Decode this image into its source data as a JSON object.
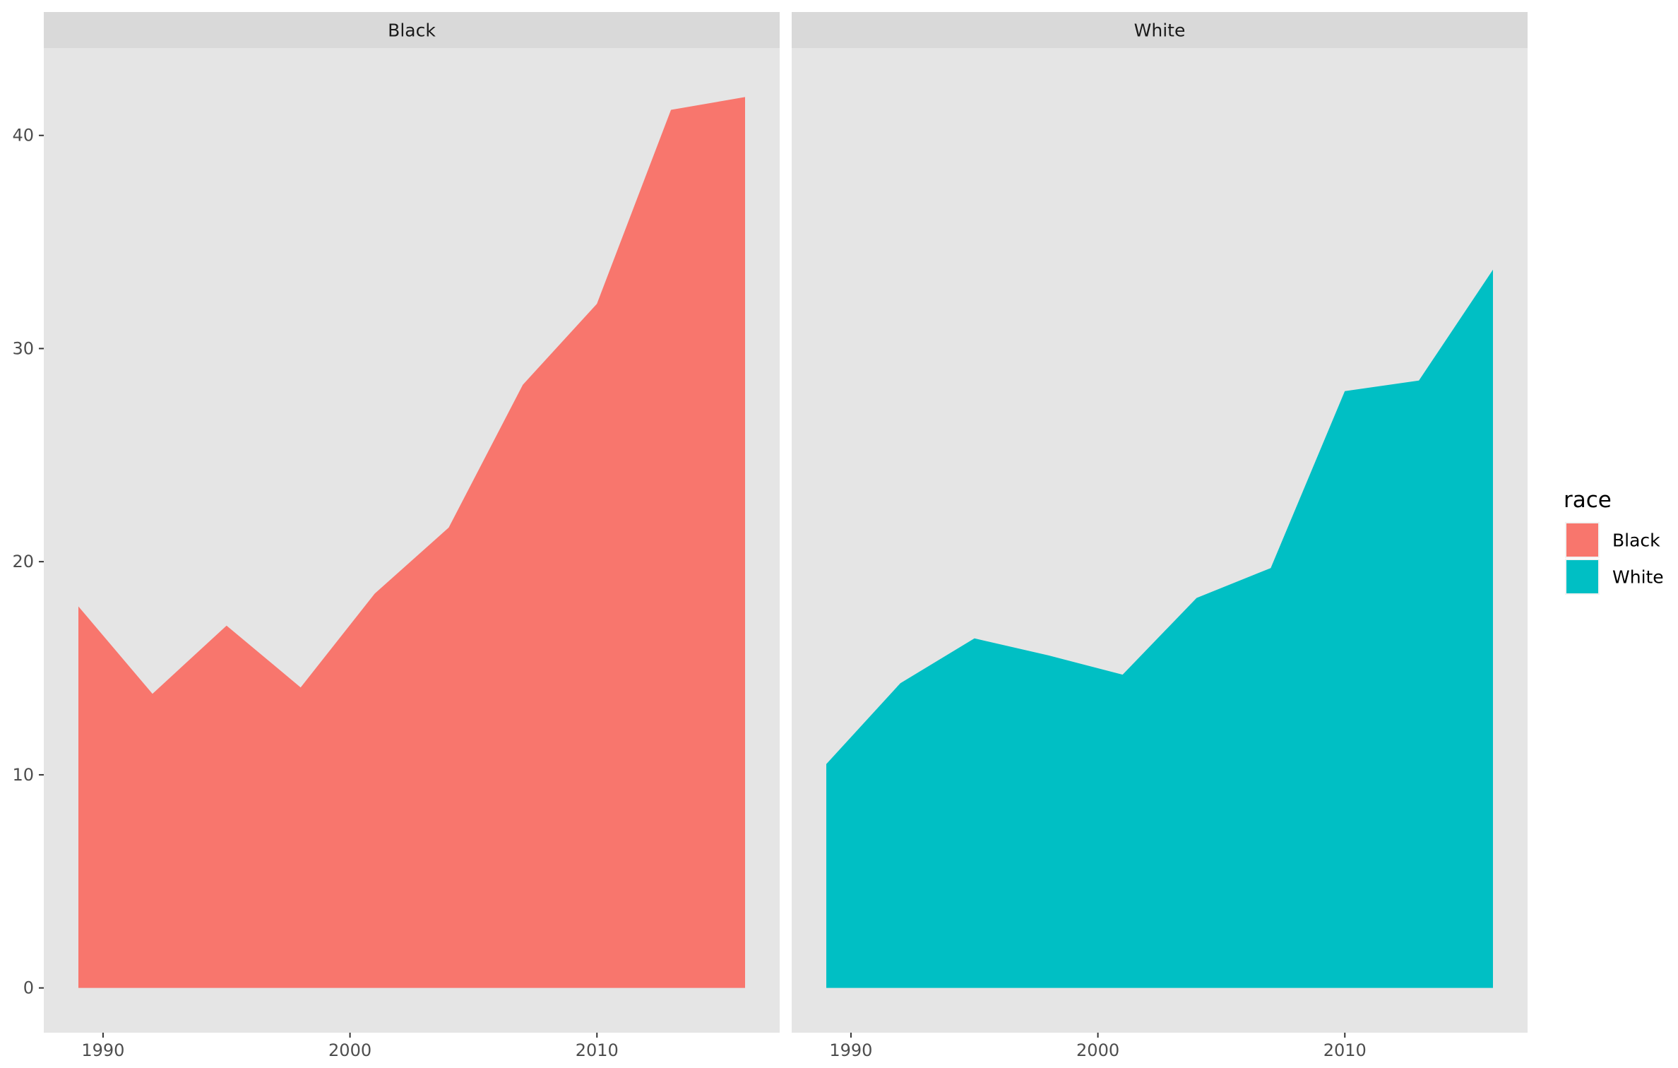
{
  "chart_data": {
    "type": "area",
    "facet_variable": "race",
    "legend": {
      "title": "race",
      "position": "right",
      "entries": [
        {
          "label": "Black",
          "color": "#F8766D"
        },
        {
          "label": "White",
          "color": "#00BFC4"
        }
      ]
    },
    "x_ticks": [
      1990,
      2000,
      2010
    ],
    "y_ticks": [
      0,
      10,
      20,
      30,
      40
    ],
    "xlim": [
      1987.6,
      2017.4
    ],
    "ylim": [
      -2.1,
      44.1
    ],
    "background": "#E5E5E5",
    "strip_background": "#D9D9D9",
    "grid": false,
    "panels": [
      {
        "strip_label": "Black",
        "fill": "#F8766D",
        "x": [
          1989,
          1992,
          1995,
          1998,
          2001,
          2004,
          2007,
          2010,
          2013,
          2016
        ],
        "y": [
          17.9,
          13.8,
          17.0,
          14.1,
          18.5,
          21.6,
          28.3,
          32.1,
          41.2,
          41.8
        ]
      },
      {
        "strip_label": "White",
        "fill": "#00BFC4",
        "x": [
          1989,
          1992,
          1995,
          1998,
          2001,
          2004,
          2007,
          2010,
          2013,
          2016
        ],
        "y": [
          10.5,
          14.3,
          16.4,
          15.6,
          14.7,
          18.3,
          19.7,
          28.0,
          28.5,
          33.7
        ]
      }
    ]
  }
}
